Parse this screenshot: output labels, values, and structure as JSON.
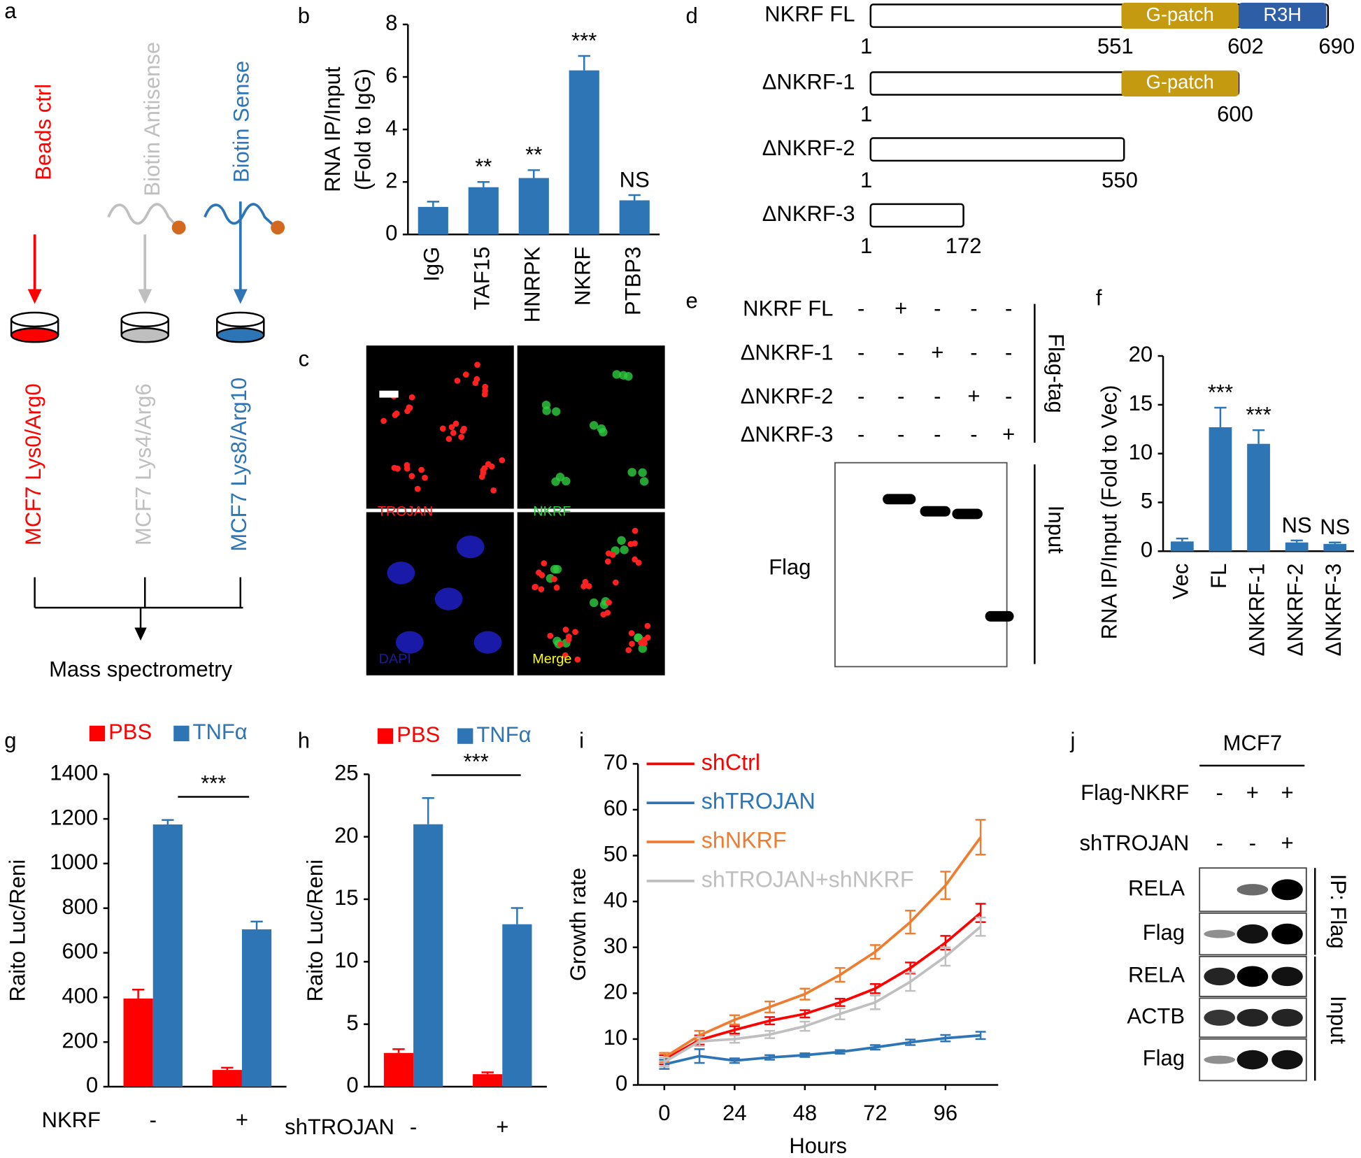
{
  "panel_labels": [
    "a",
    "b",
    "c",
    "d",
    "e",
    "f",
    "g",
    "h",
    "i",
    "j"
  ],
  "panel_a": {
    "probes": [
      "Beads ctrl",
      "Biotin Antisense",
      "Biotin Sense"
    ],
    "lysates": [
      "MCF7 Lys0/Arg0",
      "MCF7 Lys4/Arg6",
      "MCF7 Lys8/Arg10"
    ],
    "output": "Mass spectrometry"
  },
  "panel_c": {
    "channels": [
      "TROJAN",
      "NKRF",
      "DAPI",
      "Merge"
    ]
  },
  "panel_d": {
    "constructs": [
      {
        "name": "NKRF FL",
        "positions": [
          1,
          551,
          602,
          690
        ],
        "domains": [
          "G-patch",
          "R3H"
        ]
      },
      {
        "name": "ΔNKRF-1",
        "positions": [
          1,
          600
        ],
        "domains": [
          "G-patch"
        ]
      },
      {
        "name": "ΔNKRF-2",
        "positions": [
          1,
          550
        ]
      },
      {
        "name": "ΔNKRF-3",
        "positions": [
          1,
          172
        ]
      }
    ]
  },
  "panel_e": {
    "rows": [
      {
        "name": "NKRF FL",
        "signs": [
          "-",
          "+",
          "-",
          "-",
          "-"
        ]
      },
      {
        "name": "ΔNKRF-1",
        "signs": [
          "-",
          "-",
          "+",
          "-",
          "-"
        ]
      },
      {
        "name": "ΔNKRF-2",
        "signs": [
          "-",
          "-",
          "-",
          "+",
          "-"
        ]
      },
      {
        "name": "ΔNKRF-3",
        "signs": [
          "-",
          "-",
          "-",
          "-",
          "+"
        ]
      }
    ],
    "group_label": "Flag-tag",
    "blot_label": "Flag",
    "blot_group": "Input"
  },
  "panel_j": {
    "cell_line": "MCF7",
    "rows": [
      {
        "name": "Flag-NKRF",
        "signs": [
          "-",
          "+",
          "+"
        ]
      },
      {
        "name": "shTROJAN",
        "signs": [
          "-",
          "-",
          "+"
        ]
      }
    ],
    "blots": [
      "RELA",
      "Flag",
      "RELA",
      "ACTB",
      "Flag"
    ],
    "groups": [
      "IP: Flag",
      "Input"
    ]
  },
  "chart_data": [
    {
      "type": "bar",
      "ylabel": [
        "RNA IP/Input",
        "(Fold to IgG)"
      ],
      "categories": [
        "IgG",
        "TAF15",
        "HNRPK",
        "NKRF",
        "PTBP3"
      ],
      "values": [
        1.05,
        1.8,
        2.15,
        6.25,
        1.3
      ],
      "errors": [
        0.2,
        0.2,
        0.3,
        0.55,
        0.2
      ],
      "annotations": [
        null,
        "**",
        "**",
        "***",
        "NS"
      ],
      "color": "#2e75b6",
      "ylim": [
        0,
        8
      ],
      "yticks": [
        0,
        2,
        4,
        6,
        8
      ]
    },
    {
      "type": "bar",
      "ylabel": [
        "RNA IP/Input (Fold to Vec)"
      ],
      "categories": [
        "Vec",
        "FL",
        "ΔNKRF-1",
        "ΔNKRF-2",
        "ΔNKRF-3"
      ],
      "values": [
        1.0,
        12.7,
        11.0,
        0.9,
        0.75
      ],
      "errors": [
        0.3,
        2.0,
        1.4,
        0.2,
        0.15
      ],
      "annotations": [
        null,
        "***",
        "***",
        "NS",
        "NS"
      ],
      "color": "#2e75b6",
      "ylim": [
        0,
        20
      ],
      "yticks": [
        0,
        5,
        10,
        15,
        20
      ]
    },
    {
      "type": "grouped_bar",
      "ylabel": [
        "Raito Luc/Reni"
      ],
      "xlabel": "NKRF",
      "categories": [
        "-",
        "+"
      ],
      "series": [
        {
          "name": "PBS",
          "color": "#ff0000",
          "values": [
            395,
            75
          ],
          "errors": [
            40,
            10
          ]
        },
        {
          "name": "TNFα",
          "color": "#2e75b6",
          "values": [
            1175,
            705
          ],
          "errors": [
            20,
            35
          ]
        }
      ],
      "annotation": "***",
      "ylim": [
        0,
        1400
      ],
      "yticks": [
        0,
        200,
        400,
        600,
        800,
        1000,
        1200,
        1400
      ]
    },
    {
      "type": "grouped_bar",
      "ylabel": [
        "Raito Luc/Reni"
      ],
      "xlabel": "shTROJAN",
      "categories": [
        "-",
        "+"
      ],
      "series": [
        {
          "name": "PBS",
          "color": "#ff0000",
          "values": [
            2.7,
            1.0
          ],
          "errors": [
            0.3,
            0.15
          ]
        },
        {
          "name": "TNFα",
          "color": "#2e75b6",
          "values": [
            21.0,
            13.0
          ],
          "errors": [
            2.1,
            1.3
          ]
        }
      ],
      "annotation": "***",
      "ylim": [
        0,
        25
      ],
      "yticks": [
        0,
        5,
        10,
        15,
        20,
        25
      ]
    },
    {
      "type": "line",
      "ylabel": [
        "Growth rate"
      ],
      "xlabel": "Hours",
      "x": [
        0,
        12,
        24,
        36,
        48,
        60,
        72,
        84,
        96,
        108
      ],
      "series": [
        {
          "name": "shCtrl",
          "color": "#ff0000",
          "values": [
            5.5,
            9.8,
            12,
            14,
            15.5,
            18,
            21,
            25.5,
            31,
            37.5
          ],
          "errors": [
            1,
            1,
            0.8,
            0.8,
            0.8,
            0.8,
            1,
            1.2,
            1.5,
            2
          ]
        },
        {
          "name": "shTROJAN",
          "color": "#2e75b6",
          "values": [
            4.5,
            6.3,
            5.3,
            6,
            6.5,
            7.2,
            8.2,
            9.3,
            10.2,
            10.8
          ],
          "errors": [
            1,
            1.5,
            0.5,
            0.5,
            0.4,
            0.4,
            0.5,
            0.6,
            0.7,
            0.8
          ]
        },
        {
          "name": "shNKRF",
          "color": "#ed7d31",
          "values": [
            6,
            10.8,
            14.2,
            17,
            19.8,
            24,
            29,
            35.5,
            43.5,
            54
          ],
          "errors": [
            1,
            1,
            1,
            1.2,
            1.2,
            1.5,
            1.5,
            2.5,
            3,
            3.8
          ]
        },
        {
          "name": "shTROJAN+shNKRF",
          "color": "#bfbfbf",
          "values": [
            5,
            9.5,
            10,
            11,
            12.8,
            15.5,
            18,
            22.5,
            28,
            34.5
          ],
          "errors": [
            1,
            1,
            0.8,
            0.8,
            1,
            1.2,
            1.5,
            2,
            2,
            2
          ]
        }
      ],
      "xlim": [
        -9,
        114
      ],
      "xticks": [
        0,
        24,
        48,
        72,
        96
      ],
      "ylim": [
        0,
        70
      ],
      "yticks": [
        0,
        10,
        20,
        30,
        40,
        50,
        60,
        70
      ]
    }
  ]
}
